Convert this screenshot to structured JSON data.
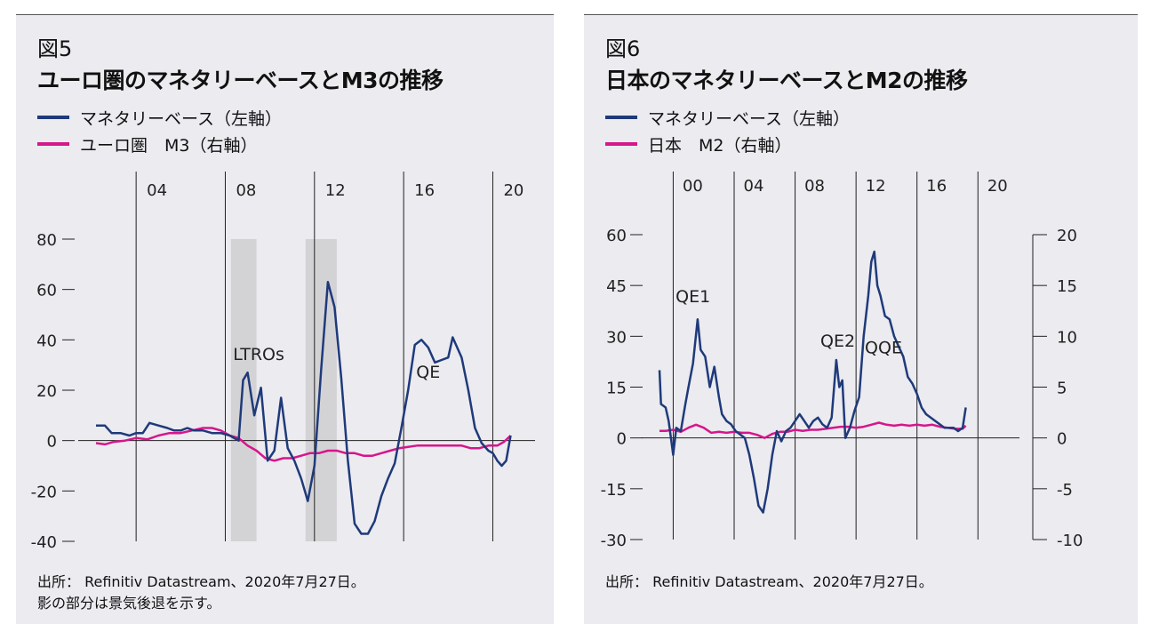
{
  "charts": [
    {
      "fig_num": "図5",
      "title": "ユーロ圏のマネタリーベースとM3の推移",
      "legend": [
        {
          "label": "マネタリーベース（左軸）",
          "color": "#1f3a7a"
        },
        {
          "label": "ユーロ圏　M3（右軸）",
          "color": "#d6168b"
        }
      ],
      "source_lines": [
        "出所： Refinitiv Datastream、2020年7月27日。",
        "影の部分は景気後退を示す。"
      ],
      "annotations": [
        "LTROs",
        "QE"
      ]
    },
    {
      "fig_num": "図6",
      "title": "日本のマネタリーベースとM2の推移",
      "legend": [
        {
          "label": "マネタリーベース（左軸）",
          "color": "#1f3a7a"
        },
        {
          "label": "日本　M2（右軸）",
          "color": "#d6168b"
        }
      ],
      "source_lines": [
        "出所： Refinitiv Datastream、2020年7月27日。"
      ],
      "annotations": [
        "QE1",
        "QE2",
        "QQE"
      ]
    }
  ],
  "chart_data": [
    {
      "type": "line",
      "title": "ユーロ圏のマネタリーベースとM3の推移",
      "x_ticks": [
        "04",
        "08",
        "12",
        "16",
        "20"
      ],
      "xlim": [
        2002.2,
        2020.3
      ],
      "ylim": [
        -40,
        80
      ],
      "y_ticks": [
        "80",
        "60",
        "40",
        "20",
        "0",
        "-20",
        "-40"
      ],
      "grid": "vertical lines at x ticks",
      "recessions": [
        [
          2008.25,
          2009.4
        ],
        [
          2011.6,
          2013.0
        ]
      ],
      "annotations": [
        {
          "text": "LTROs",
          "x": 2009.5,
          "y": 32
        },
        {
          "text": "QE",
          "x": 2017.1,
          "y": 25
        }
      ],
      "series": [
        {
          "name": "マネタリーベース（左軸）",
          "color": "#1f3a7a",
          "points": [
            [
              2002.2,
              6
            ],
            [
              2002.6,
              6
            ],
            [
              2002.9,
              3
            ],
            [
              2003.3,
              3
            ],
            [
              2003.7,
              2
            ],
            [
              2004.0,
              3
            ],
            [
              2004.3,
              3
            ],
            [
              2004.6,
              7
            ],
            [
              2005.0,
              6
            ],
            [
              2005.4,
              5
            ],
            [
              2005.7,
              4
            ],
            [
              2006.0,
              4
            ],
            [
              2006.3,
              5
            ],
            [
              2006.6,
              4
            ],
            [
              2007.0,
              4
            ],
            [
              2007.4,
              3
            ],
            [
              2007.8,
              3
            ],
            [
              2008.2,
              2
            ],
            [
              2008.6,
              0
            ],
            [
              2008.8,
              24
            ],
            [
              2009.0,
              27
            ],
            [
              2009.3,
              10
            ],
            [
              2009.6,
              21
            ],
            [
              2009.9,
              -8
            ],
            [
              2010.2,
              -4
            ],
            [
              2010.5,
              17
            ],
            [
              2010.8,
              -3
            ],
            [
              2011.1,
              -8
            ],
            [
              2011.4,
              -15
            ],
            [
              2011.7,
              -24
            ],
            [
              2012.0,
              -10
            ],
            [
              2012.3,
              28
            ],
            [
              2012.6,
              63
            ],
            [
              2012.9,
              53
            ],
            [
              2013.2,
              25
            ],
            [
              2013.5,
              -8
            ],
            [
              2013.8,
              -33
            ],
            [
              2014.1,
              -37
            ],
            [
              2014.4,
              -37
            ],
            [
              2014.7,
              -32
            ],
            [
              2015.0,
              -22
            ],
            [
              2015.3,
              -15
            ],
            [
              2015.6,
              -9
            ],
            [
              2015.9,
              5
            ],
            [
              2016.2,
              20
            ],
            [
              2016.5,
              38
            ],
            [
              2016.8,
              40
            ],
            [
              2017.1,
              37
            ],
            [
              2017.4,
              31
            ],
            [
              2017.7,
              32
            ],
            [
              2018.0,
              33
            ],
            [
              2018.2,
              41
            ],
            [
              2018.6,
              33
            ],
            [
              2018.9,
              20
            ],
            [
              2019.2,
              5
            ],
            [
              2019.5,
              -1
            ],
            [
              2019.8,
              -4
            ],
            [
              2020.0,
              -5
            ],
            [
              2020.2,
              -8
            ],
            [
              2020.4,
              -10
            ],
            [
              2020.6,
              -8
            ],
            [
              2020.8,
              2
            ]
          ]
        },
        {
          "name": "ユーロ圏　M3（右軸）",
          "color": "#d6168b",
          "points": [
            [
              2002.2,
              -1
            ],
            [
              2002.6,
              -1.5
            ],
            [
              2003.0,
              -0.5
            ],
            [
              2003.5,
              0
            ],
            [
              2004.0,
              1
            ],
            [
              2004.5,
              0.5
            ],
            [
              2005.0,
              2
            ],
            [
              2005.5,
              3
            ],
            [
              2006.0,
              3
            ],
            [
              2006.5,
              4
            ],
            [
              2007.0,
              5
            ],
            [
              2007.4,
              5
            ],
            [
              2007.8,
              4
            ],
            [
              2008.2,
              2
            ],
            [
              2008.6,
              1
            ],
            [
              2009.0,
              -2
            ],
            [
              2009.4,
              -4
            ],
            [
              2009.8,
              -7
            ],
            [
              2010.2,
              -8
            ],
            [
              2010.6,
              -7
            ],
            [
              2011.0,
              -7
            ],
            [
              2011.4,
              -6
            ],
            [
              2011.8,
              -5
            ],
            [
              2012.2,
              -5
            ],
            [
              2012.6,
              -4
            ],
            [
              2013.0,
              -4
            ],
            [
              2013.4,
              -5
            ],
            [
              2013.8,
              -5
            ],
            [
              2014.2,
              -6
            ],
            [
              2014.6,
              -6
            ],
            [
              2015.0,
              -5
            ],
            [
              2015.4,
              -4
            ],
            [
              2015.8,
              -3
            ],
            [
              2016.2,
              -2.5
            ],
            [
              2016.6,
              -2
            ],
            [
              2017.0,
              -2
            ],
            [
              2017.4,
              -2
            ],
            [
              2017.8,
              -2
            ],
            [
              2018.2,
              -2
            ],
            [
              2018.6,
              -2
            ],
            [
              2019.0,
              -3
            ],
            [
              2019.4,
              -3
            ],
            [
              2019.8,
              -2
            ],
            [
              2020.2,
              -2
            ],
            [
              2020.5,
              -0.5
            ],
            [
              2020.8,
              2
            ]
          ]
        }
      ]
    },
    {
      "type": "line",
      "title": "日本のマネタリーベースとM2の推移",
      "x_ticks": [
        "00",
        "04",
        "08",
        "12",
        "16",
        "20"
      ],
      "xlim": [
        1999.1,
        2020.1
      ],
      "ylim_left": [
        -30,
        60
      ],
      "y_ticks_left": [
        "60",
        "45",
        "30",
        "15",
        "0",
        "-15",
        "-30"
      ],
      "ylim_right": [
        -10,
        20
      ],
      "y_ticks_right": [
        "20",
        "15",
        "10",
        "5",
        "0",
        "-5",
        "-10"
      ],
      "grid": "vertical lines at x ticks",
      "annotations": [
        {
          "text": "QE1",
          "x": 2001.3,
          "y": 40
        },
        {
          "text": "QE2",
          "x": 2010.8,
          "y": 27
        },
        {
          "text": "QQE",
          "x": 2013.8,
          "y": 25
        }
      ],
      "series": [
        {
          "name": "マネタリーベース（左軸）",
          "color": "#1f3a7a",
          "points": [
            [
              1999.1,
              20
            ],
            [
              1999.2,
              10
            ],
            [
              1999.5,
              9
            ],
            [
              1999.7,
              5
            ],
            [
              2000.0,
              -5
            ],
            [
              2000.2,
              3
            ],
            [
              2000.5,
              2
            ],
            [
              2000.8,
              10
            ],
            [
              2001.0,
              15
            ],
            [
              2001.3,
              22
            ],
            [
              2001.6,
              35
            ],
            [
              2001.8,
              26
            ],
            [
              2002.1,
              24
            ],
            [
              2002.4,
              15
            ],
            [
              2002.7,
              21
            ],
            [
              2003.0,
              12
            ],
            [
              2003.2,
              7
            ],
            [
              2003.5,
              5
            ],
            [
              2003.8,
              4
            ],
            [
              2004.1,
              2
            ],
            [
              2004.4,
              1
            ],
            [
              2004.7,
              0
            ],
            [
              2005.0,
              -5
            ],
            [
              2005.3,
              -12
            ],
            [
              2005.6,
              -20
            ],
            [
              2005.9,
              -22
            ],
            [
              2006.2,
              -15
            ],
            [
              2006.5,
              -5
            ],
            [
              2006.8,
              2
            ],
            [
              2007.1,
              -1
            ],
            [
              2007.4,
              2
            ],
            [
              2007.7,
              3
            ],
            [
              2008.0,
              5
            ],
            [
              2008.3,
              7
            ],
            [
              2008.6,
              5
            ],
            [
              2008.9,
              3
            ],
            [
              2009.2,
              5
            ],
            [
              2009.5,
              6
            ],
            [
              2009.8,
              4
            ],
            [
              2010.1,
              3
            ],
            [
              2010.4,
              6
            ],
            [
              2010.7,
              23
            ],
            [
              2010.9,
              15
            ],
            [
              2011.1,
              17
            ],
            [
              2011.3,
              0
            ],
            [
              2011.6,
              3
            ],
            [
              2011.9,
              8
            ],
            [
              2012.2,
              12
            ],
            [
              2012.5,
              30
            ],
            [
              2012.8,
              42
            ],
            [
              2013.0,
              52
            ],
            [
              2013.2,
              55
            ],
            [
              2013.4,
              45
            ],
            [
              2013.6,
              42
            ],
            [
              2013.9,
              36
            ],
            [
              2014.2,
              35
            ],
            [
              2014.5,
              30
            ],
            [
              2014.8,
              27
            ],
            [
              2015.1,
              24
            ],
            [
              2015.4,
              18
            ],
            [
              2015.7,
              16
            ],
            [
              2016.0,
              13
            ],
            [
              2016.3,
              9
            ],
            [
              2016.6,
              7
            ],
            [
              2016.9,
              6
            ],
            [
              2017.2,
              5
            ],
            [
              2017.5,
              4
            ],
            [
              2017.8,
              3
            ],
            [
              2018.1,
              3
            ],
            [
              2018.4,
              3
            ],
            [
              2018.7,
              2
            ],
            [
              2019.0,
              3
            ],
            [
              2019.2,
              9
            ]
          ]
        },
        {
          "name": "日本　M2（右軸）",
          "color": "#d6168b",
          "points": [
            [
              1999.1,
              0.7
            ],
            [
              1999.5,
              0.7
            ],
            [
              2000.0,
              0.8
            ],
            [
              2000.5,
              0.6
            ],
            [
              2001.0,
              1.0
            ],
            [
              2001.5,
              1.3
            ],
            [
              2002.0,
              1.0
            ],
            [
              2002.5,
              0.5
            ],
            [
              2003.0,
              0.6
            ],
            [
              2003.5,
              0.5
            ],
            [
              2004.0,
              0.6
            ],
            [
              2004.5,
              0.5
            ],
            [
              2005.0,
              0.5
            ],
            [
              2005.5,
              0.3
            ],
            [
              2006.0,
              0.0
            ],
            [
              2006.5,
              0.4
            ],
            [
              2007.0,
              0.6
            ],
            [
              2007.5,
              0.6
            ],
            [
              2008.0,
              0.8
            ],
            [
              2008.5,
              0.7
            ],
            [
              2009.0,
              0.8
            ],
            [
              2009.5,
              0.8
            ],
            [
              2010.0,
              0.9
            ],
            [
              2010.5,
              1.0
            ],
            [
              2011.0,
              1.1
            ],
            [
              2011.5,
              1.1
            ],
            [
              2012.0,
              1.0
            ],
            [
              2012.5,
              1.1
            ],
            [
              2013.0,
              1.3
            ],
            [
              2013.5,
              1.5
            ],
            [
              2014.0,
              1.3
            ],
            [
              2014.5,
              1.2
            ],
            [
              2015.0,
              1.3
            ],
            [
              2015.5,
              1.2
            ],
            [
              2016.0,
              1.3
            ],
            [
              2016.5,
              1.2
            ],
            [
              2017.0,
              1.3
            ],
            [
              2017.5,
              1.1
            ],
            [
              2018.0,
              1.0
            ],
            [
              2018.5,
              0.9
            ],
            [
              2019.0,
              0.9
            ],
            [
              2019.2,
              1.2
            ]
          ]
        }
      ]
    }
  ]
}
